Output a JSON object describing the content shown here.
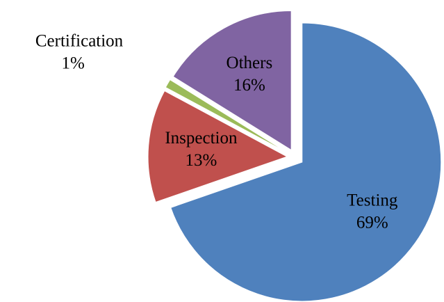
{
  "chart_data": {
    "type": "pie",
    "categories": [
      "Testing",
      "Inspection",
      "Certification",
      "Others"
    ],
    "values": [
      69,
      13,
      1,
      16
    ],
    "value_labels": [
      "69%",
      "13%",
      "1%",
      "16%"
    ],
    "colors": [
      "#4f81bd",
      "#c0504d",
      "#9bbb59",
      "#8064a2"
    ]
  }
}
